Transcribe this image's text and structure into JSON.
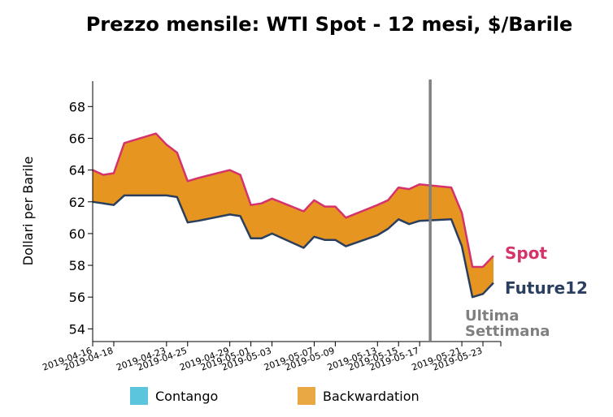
{
  "chart_data": {
    "type": "area",
    "title": "Prezzo mensile: WTI Spot - 12 mesi, $/Barile",
    "xlabel": "",
    "ylabel": "Dollari per Barile",
    "ylim": [
      53.2,
      69.6
    ],
    "yticks": [
      54,
      56,
      58,
      60,
      62,
      64,
      66,
      68
    ],
    "x": [
      "2019-04-16",
      "2019-04-17",
      "2019-04-18",
      "2019-04-19",
      "2019-04-22",
      "2019-04-23",
      "2019-04-24",
      "2019-04-25",
      "2019-04-26",
      "2019-04-29",
      "2019-04-30",
      "2019-05-01",
      "2019-05-02",
      "2019-05-03",
      "2019-05-06",
      "2019-05-07",
      "2019-05-08",
      "2019-05-09",
      "2019-05-10",
      "2019-05-13",
      "2019-05-14",
      "2019-05-15",
      "2019-05-16",
      "2019-05-17",
      "2019-05-20",
      "2019-05-21",
      "2019-05-22",
      "2019-05-23",
      "2019-05-24"
    ],
    "xticks": [
      "2019-04-16",
      "2019-04-18",
      "2019-04-23",
      "2019-04-25",
      "2019-04-29",
      "2019-05-01",
      "2019-05-03",
      "2019-05-07",
      "2019-05-09",
      "2019-05-13",
      "2019-05-15",
      "2019-05-17",
      "2019-05-21",
      "2019-05-23"
    ],
    "series": [
      {
        "name": "Spot",
        "color": "#d6336c",
        "values": [
          64.0,
          63.7,
          63.8,
          65.7,
          66.3,
          65.6,
          65.1,
          63.3,
          63.5,
          64.0,
          63.7,
          61.8,
          61.9,
          62.2,
          61.4,
          62.1,
          61.7,
          61.7,
          61.0,
          61.8,
          62.1,
          62.9,
          62.8,
          63.1,
          62.9,
          61.3,
          57.9,
          57.9,
          58.6
        ]
      },
      {
        "name": "Future12",
        "color": "#2a3f5f",
        "values": [
          62.0,
          61.9,
          61.8,
          62.4,
          62.4,
          62.4,
          62.3,
          60.7,
          60.8,
          61.2,
          61.1,
          59.7,
          59.7,
          60.0,
          59.1,
          59.8,
          59.6,
          59.6,
          59.2,
          59.9,
          60.3,
          60.9,
          60.6,
          60.8,
          60.9,
          59.2,
          56.0,
          56.2,
          56.9
        ]
      }
    ],
    "fill_colors": {
      "backwardation": "#e69520",
      "contango": "#5bc5de"
    },
    "vline": {
      "x": "2019-05-18",
      "color": "#808080",
      "label": "Ultima Settimana"
    },
    "legend": {
      "position": "bottom",
      "items": [
        {
          "label": "Contango",
          "color": "#5bc5de"
        },
        {
          "label": "Backwardation",
          "color": "#eaa845"
        }
      ]
    }
  }
}
